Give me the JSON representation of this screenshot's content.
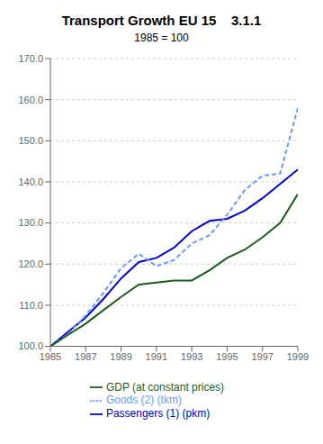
{
  "chart_data": {
    "type": "line",
    "title": "Transport Growth EU 15    3.1.1",
    "subtitle": "1985 = 100",
    "x": [
      1985,
      1986,
      1987,
      1988,
      1989,
      1990,
      1991,
      1992,
      1993,
      1994,
      1995,
      1996,
      1997,
      1998,
      1999
    ],
    "series": [
      {
        "name": "Passengers (1) (pkm)",
        "color": "#0000CC",
        "line_style": "solid",
        "values": [
          100.0,
          103.5,
          107.0,
          111.5,
          116.5,
          120.5,
          121.5,
          124.0,
          128.0,
          130.5,
          131.0,
          133.0,
          136.0,
          139.5,
          143.0
        ]
      },
      {
        "name": "Goods (2) (tkm)",
        "color": "#6699FF",
        "line_style": "dashed",
        "values": [
          100.0,
          103.0,
          107.5,
          113.0,
          119.0,
          122.5,
          119.5,
          121.0,
          125.0,
          127.0,
          132.0,
          138.0,
          141.5,
          142.0,
          158.0
        ]
      },
      {
        "name": "GDP (at constant prices)",
        "color": "#1A5C1A",
        "line_style": "solid",
        "values": [
          100.0,
          102.8,
          105.5,
          108.8,
          112.0,
          115.0,
          115.5,
          116.0,
          116.0,
          118.5,
          121.5,
          123.5,
          126.5,
          130.0,
          137.0
        ]
      }
    ],
    "xlim": [
      1985,
      1999
    ],
    "ylim": [
      100.0,
      170.0
    ],
    "xticks": [
      1985,
      1987,
      1989,
      1991,
      1993,
      1995,
      1997,
      1999
    ],
    "yticks": [
      {
        "value": 100.0,
        "label": "100.0"
      },
      {
        "value": 110.0,
        "label": "110.0"
      },
      {
        "value": 120.0,
        "label": "120.0"
      },
      {
        "value": 130.0,
        "label": "130.0"
      },
      {
        "value": 140.0,
        "label": "140.0"
      },
      {
        "value": 150.0,
        "label": "150.0"
      },
      {
        "value": 160.0,
        "label": "160.0"
      },
      {
        "value": 170.0,
        "label": "170.0"
      }
    ],
    "grid": "y",
    "legend": "bottom"
  }
}
